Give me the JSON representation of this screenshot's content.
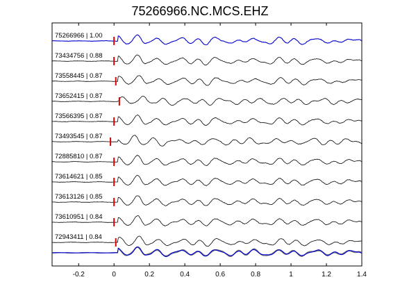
{
  "chart_data": {
    "type": "line",
    "title": "75266966.NC.MCS.EHZ",
    "xlabel": "",
    "ylabel": "",
    "xlim": [
      -0.35,
      1.4
    ],
    "xticks": [
      -0.2,
      0,
      0.2,
      0.4,
      0.6,
      0.8,
      1,
      1.2,
      1.4
    ],
    "xtick_labels": [
      "-0.2",
      "0",
      "0.2",
      "0.4",
      "0.6",
      "0.8",
      "1",
      "1.2",
      "1.4"
    ],
    "grid": false,
    "colors": {
      "reference": "#0000cc",
      "trace": "#000000",
      "overlay": "#777777",
      "pick_marker": "#dd0000"
    },
    "traces": [
      {
        "label": "75266966 | 1.00",
        "pick_time": 0.0,
        "reference": true
      },
      {
        "label": "73434756 | 0.88",
        "pick_time": 0.0,
        "reference": false
      },
      {
        "label": "73558445 | 0.87",
        "pick_time": 0.01,
        "reference": false
      },
      {
        "label": "73652415 | 0.87",
        "pick_time": 0.03,
        "reference": false
      },
      {
        "label": "73566395 | 0.87",
        "pick_time": 0.0,
        "reference": false
      },
      {
        "label": "73493545 | 0.87",
        "pick_time": -0.02,
        "reference": false
      },
      {
        "label": "72885810 | 0.87",
        "pick_time": 0.0,
        "reference": false
      },
      {
        "label": "73614621 | 0.85",
        "pick_time": 0.0,
        "reference": false
      },
      {
        "label": "73613126 | 0.85",
        "pick_time": 0.0,
        "reference": false
      },
      {
        "label": "73610951 | 0.84",
        "pick_time": 0.0,
        "reference": false
      },
      {
        "label": "72943411 | 0.84",
        "pick_time": 0.01,
        "reference": false
      }
    ],
    "stack": {
      "overlay_count": 11
    }
  }
}
